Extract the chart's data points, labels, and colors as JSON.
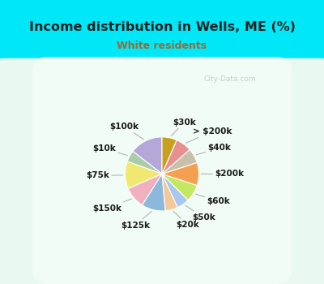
{
  "title": "Income distribution in Wells, ME (%)",
  "subtitle": "White residents",
  "watermark": "City-Data.com",
  "labels": [
    "$100k",
    "$10k",
    "$75k",
    "$150k",
    "$125k",
    "$20k",
    "$50k",
    "$60k",
    "$200k",
    "$40k",
    "> $200k",
    "$30k"
  ],
  "values": [
    14.5,
    5.0,
    12.0,
    9.5,
    10.5,
    5.5,
    5.5,
    7.5,
    10.0,
    6.5,
    7.0,
    6.5
  ],
  "colors": [
    "#b3a8d8",
    "#aacca8",
    "#f0e870",
    "#f0b0be",
    "#8cb8dc",
    "#f5c898",
    "#a8c8f0",
    "#c4e860",
    "#f5a050",
    "#c8c0a8",
    "#e89090",
    "#c8a020"
  ],
  "bg_top_color": "#00e8f8",
  "bg_bottom_color": "#d8f8e8",
  "title_color": "#202020",
  "subtitle_color": "#a06830",
  "label_fontsize": 7.5,
  "title_fontsize": 11.5,
  "subtitle_fontsize": 9
}
